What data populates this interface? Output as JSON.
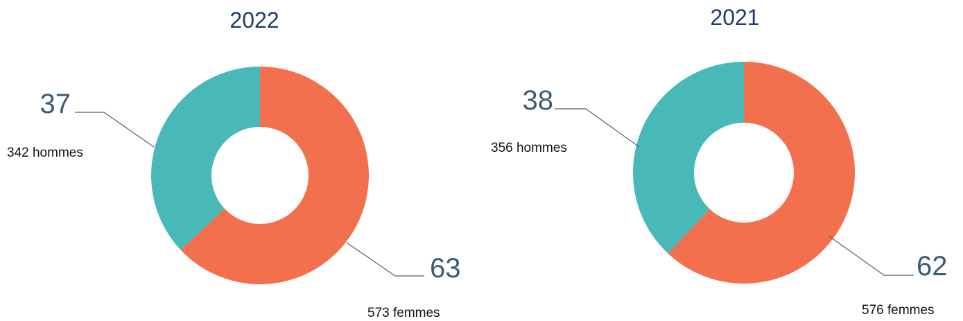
{
  "chart_data": [
    {
      "type": "pie",
      "donut": true,
      "title": "2022",
      "categories": [
        "573 femmes",
        "342 hommes"
      ],
      "values": [
        63,
        37
      ],
      "colors": [
        "#f2704d",
        "#49b8b9"
      ]
    },
    {
      "type": "pie",
      "donut": true,
      "title": "2021",
      "categories": [
        "576 femmes",
        "356 hommes"
      ],
      "values": [
        62,
        38
      ],
      "colors": [
        "#f2704d",
        "#49b8b9"
      ]
    }
  ]
}
